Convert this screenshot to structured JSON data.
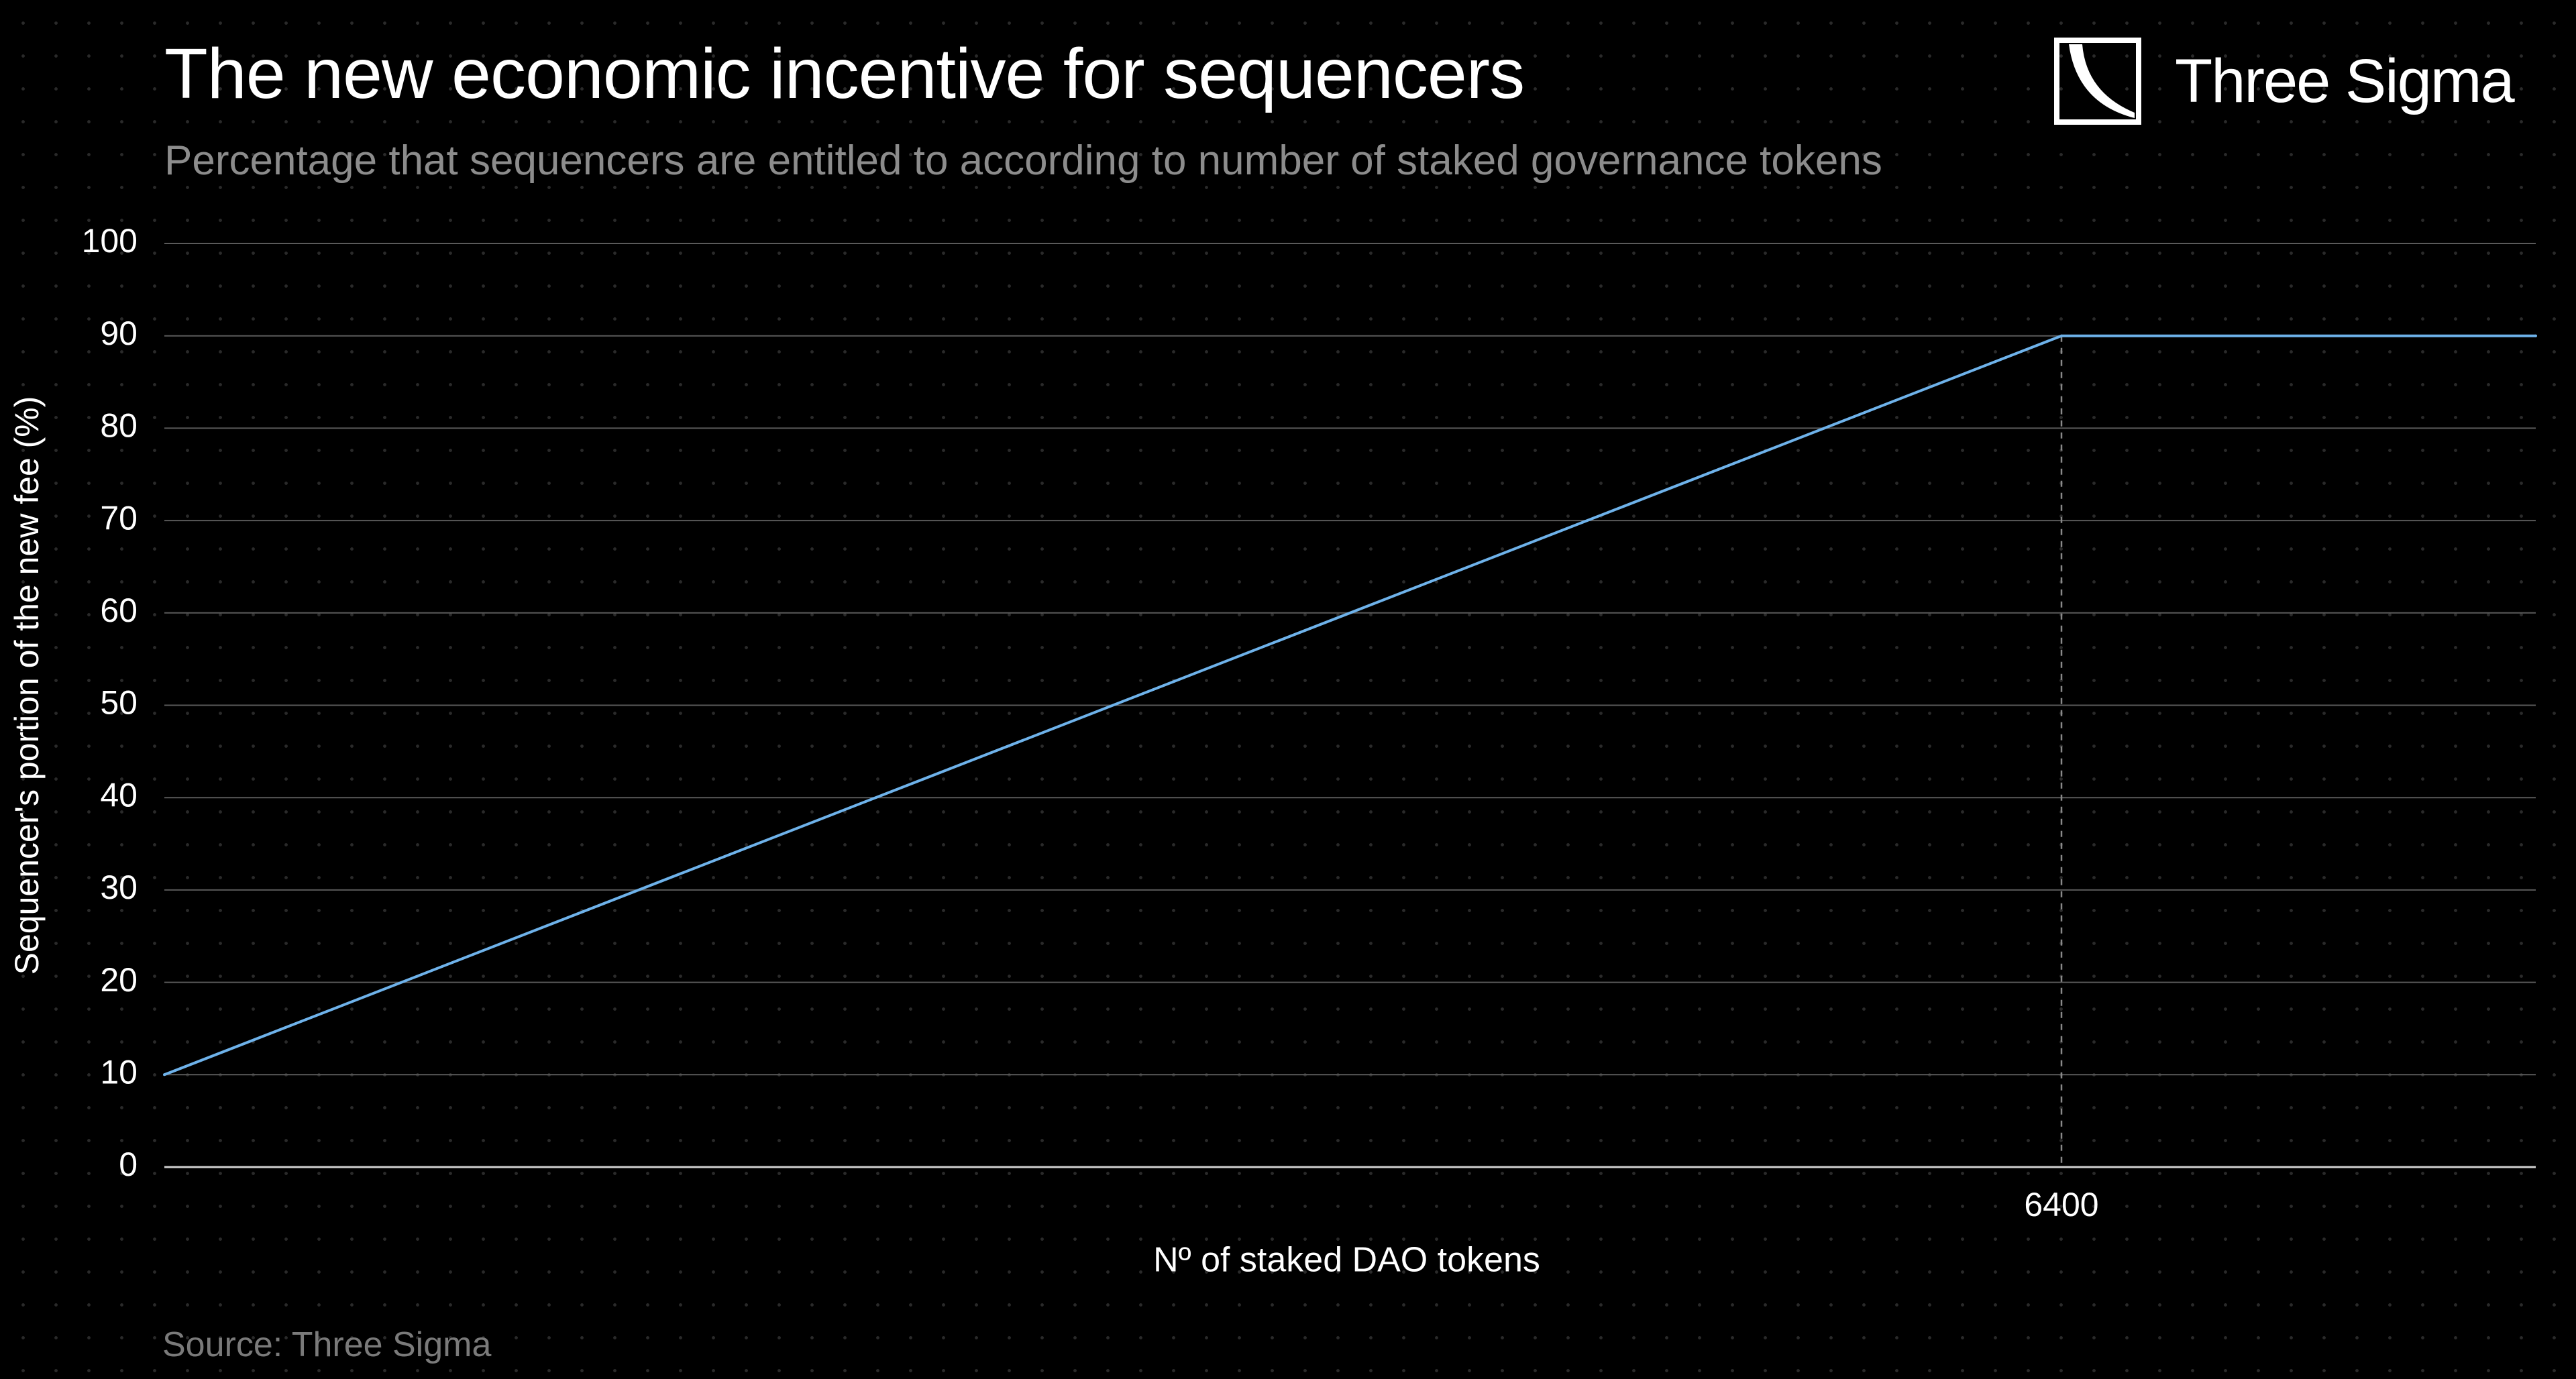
{
  "header": {
    "title": "The new economic incentive for sequencers",
    "subtitle": "Percentage that sequencers are entitled to according to number of staked governance tokens"
  },
  "brand": {
    "name": "Three Sigma",
    "icon": "three-sigma-logo-icon"
  },
  "footer": {
    "source": "Source: Three Sigma"
  },
  "colors": {
    "background": "#000000",
    "line": "#6eb2ea",
    "grid": "#5a5a5a",
    "text": "#ffffff",
    "muted": "#8c8c8c"
  },
  "chart_data": {
    "type": "line",
    "title": "The new economic incentive for sequencers",
    "subtitle": "Percentage that sequencers are entitled to according to number of staked governance tokens",
    "xlabel": "Nº of staked DAO tokens",
    "ylabel": "Sequencer's portion of the new fee (%)",
    "xlim": [
      0,
      8000
    ],
    "ylim": [
      0,
      100
    ],
    "yticks": [
      0,
      10,
      20,
      30,
      40,
      50,
      60,
      70,
      80,
      90,
      100
    ],
    "xticks": [
      6400
    ],
    "xtick_labels": [
      "6400"
    ],
    "grid": true,
    "series": [
      {
        "name": "Sequencer's portion",
        "x": [
          0,
          6400,
          8000
        ],
        "y": [
          10,
          90,
          90
        ]
      }
    ],
    "annotations": [
      {
        "type": "vertical-dashed-line",
        "x": 6400,
        "y_to": 90
      }
    ]
  }
}
